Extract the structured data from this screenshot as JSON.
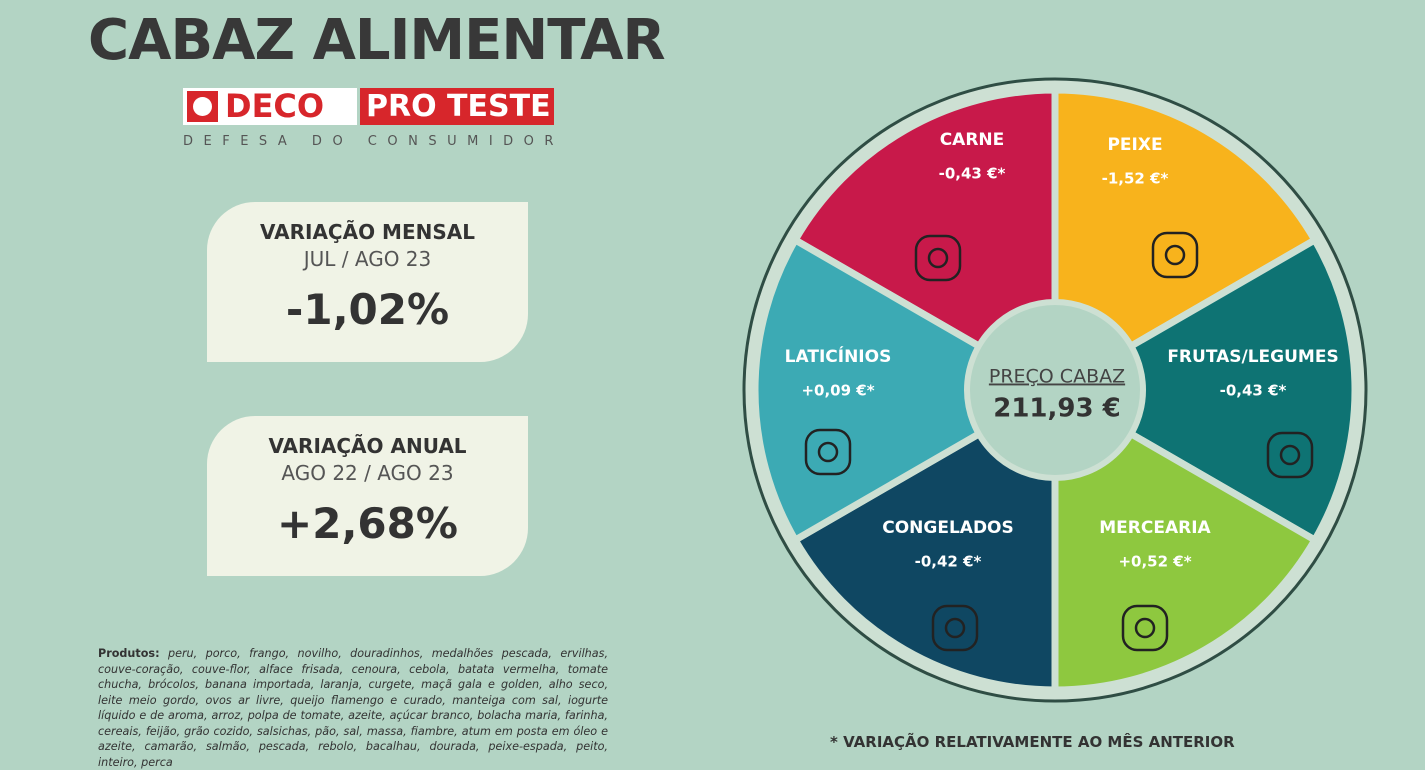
{
  "header": {
    "title": "CABAZ ALIMENTAR",
    "logo": {
      "left": "DECO",
      "right": "PRO TESTE",
      "tagline": "DEFESA DO CONSUMIDOR"
    }
  },
  "cards": [
    {
      "title": "VARIAÇÃO MENSAL",
      "period": "JUL / AGO 23",
      "value": "-1,02%"
    },
    {
      "title": "VARIAÇÃO ANUAL",
      "period": "AGO 22 / AGO 23",
      "value": "+2,68%"
    }
  ],
  "wheel": {
    "center": {
      "label": "PREÇO CABAZ",
      "value": "211,93 €"
    },
    "segments": [
      {
        "name": "CARNE",
        "change": "-0,43 €*",
        "color": "#c8194a"
      },
      {
        "name": "PEIXE",
        "change": "-1,52 €*",
        "color": "#f8b31c"
      },
      {
        "name": "FRUTAS/LEGUMES",
        "change": "-0,43 €*",
        "color": "#0e7373"
      },
      {
        "name": "MERCEARIA",
        "change": "+0,52 €*",
        "color": "#8ec83f"
      },
      {
        "name": "CONGELADOS",
        "change": "-0,42 €*",
        "color": "#0f4762"
      },
      {
        "name": "LATICÍNIOS",
        "change": "+0,09 €*",
        "color": "#3caab4"
      }
    ]
  },
  "products": {
    "label": "Produtos:",
    "text": "peru, porco, frango, novilho, douradinhos, medalhões pescada, ervilhas, couve-coração, couve-flor, alface frisada, cenoura, cebola, batata vermelha, tomate chucha, brócolos, banana importada, laranja, curgete, maçã gala e golden, alho seco, leite meio gordo, ovos ar livre, queijo flamengo e curado, manteiga com sal, iogurte líquido e de aroma, arroz, polpa de tomate, azeite, açúcar branco, bolacha maria, farinha, cereais, feijão, grão cozido, salsichas, pão, sal, massa, fiambre, atum em posta em óleo e azeite, camarão, salmão, pescada, rebolo, bacalhau, dourada, peixe-espada, peito, inteiro, perca"
  },
  "footnote": "* VARIAÇÃO RELATIVAMENTE AO MÊS ANTERIOR"
}
